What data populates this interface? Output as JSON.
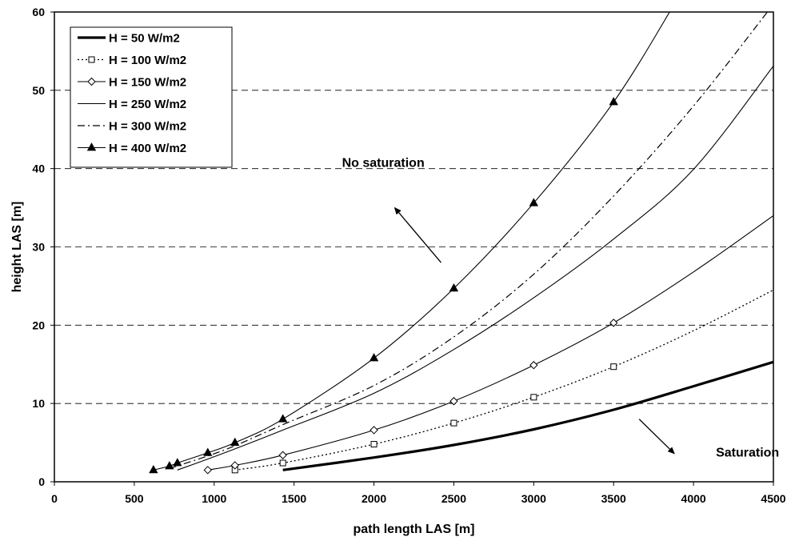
{
  "chart_data": {
    "type": "line",
    "xlabel": "path length LAS [m]",
    "ylabel": "height LAS [m]",
    "xlim": [
      0,
      4500
    ],
    "ylim": [
      0,
      60
    ],
    "xticks": [
      0,
      500,
      1000,
      1500,
      2000,
      2500,
      3000,
      3500,
      4000,
      4500
    ],
    "yticks": [
      0,
      10,
      20,
      30,
      40,
      50,
      60
    ],
    "grid": "horizontal dashed",
    "legend_position": "top-left",
    "series": [
      {
        "name": "H = 50 W/m2",
        "style": "thick-solid",
        "marker": "none",
        "points": [
          [
            1430,
            1.5
          ],
          [
            2000,
            3.1
          ],
          [
            2500,
            4.7
          ],
          [
            3000,
            6.7
          ],
          [
            3500,
            9.2
          ],
          [
            4000,
            12.2
          ],
          [
            4500,
            15.3
          ]
        ]
      },
      {
        "name": "H = 100 W/m2",
        "style": "dotted",
        "marker": "open-square",
        "marker_x": [
          1130,
          1430,
          2000,
          2500,
          3000,
          3500
        ],
        "points": [
          [
            1130,
            1.5
          ],
          [
            1430,
            2.4
          ],
          [
            2000,
            4.8
          ],
          [
            2500,
            7.5
          ],
          [
            3000,
            10.8
          ],
          [
            3500,
            14.7
          ],
          [
            4000,
            19.3
          ],
          [
            4500,
            24.5
          ]
        ]
      },
      {
        "name": "H = 150 W/m2",
        "style": "thin-solid",
        "marker": "open-diamond",
        "marker_x": [
          960,
          1130,
          1430,
          2000,
          2500,
          3000,
          3500
        ],
        "points": [
          [
            960,
            1.5
          ],
          [
            1130,
            2.1
          ],
          [
            1430,
            3.4
          ],
          [
            2000,
            6.6
          ],
          [
            2500,
            10.3
          ],
          [
            3000,
            14.9
          ],
          [
            3500,
            20.3
          ],
          [
            4000,
            26.8
          ],
          [
            4500,
            34.0
          ]
        ]
      },
      {
        "name": "H = 250 W/m2",
        "style": "thin-solid",
        "marker": "none",
        "points": [
          [
            770,
            1.5
          ],
          [
            960,
            2.9
          ],
          [
            1130,
            4.2
          ],
          [
            1430,
            6.6
          ],
          [
            2000,
            11.3
          ],
          [
            2500,
            16.9
          ],
          [
            3000,
            23.5
          ],
          [
            3500,
            31.0
          ],
          [
            4000,
            39.9
          ],
          [
            4500,
            53.1
          ]
        ]
      },
      {
        "name": "H = 300 W/m2",
        "style": "dash-dot",
        "marker": "none",
        "points": [
          [
            720,
            1.7
          ],
          [
            960,
            3.3
          ],
          [
            1130,
            4.6
          ],
          [
            1430,
            7.3
          ],
          [
            2000,
            12.3
          ],
          [
            2500,
            18.5
          ],
          [
            3000,
            26.5
          ],
          [
            3500,
            36.5
          ],
          [
            4000,
            48.0
          ],
          [
            4500,
            61.0
          ]
        ]
      },
      {
        "name": "H = 400 W/m2",
        "style": "thin-solid",
        "marker": "filled-triangle",
        "marker_x": [
          620,
          720,
          770,
          960,
          1130,
          1430,
          2000,
          2500,
          3000,
          3500
        ],
        "points": [
          [
            620,
            1.5
          ],
          [
            720,
            2.0
          ],
          [
            770,
            2.4
          ],
          [
            960,
            3.7
          ],
          [
            1130,
            5.0
          ],
          [
            1430,
            8.0
          ],
          [
            2000,
            15.8
          ],
          [
            2500,
            24.7
          ],
          [
            3000,
            35.6
          ],
          [
            3500,
            48.5
          ],
          [
            3880,
            61.0
          ]
        ]
      }
    ],
    "annotations": [
      {
        "text": "No saturation",
        "at": [
          1800,
          40.2
        ],
        "arrow_from": [
          2420,
          28.0
        ],
        "arrow_to": [
          2130,
          35.0
        ]
      },
      {
        "text": "Saturation",
        "at": [
          4140,
          3.2
        ],
        "arrow_from": [
          3660,
          8.0
        ],
        "arrow_to": [
          3880,
          3.6
        ]
      }
    ]
  }
}
